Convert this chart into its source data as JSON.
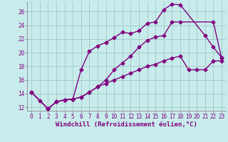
{
  "xlabel": "Windchill (Refroidissement éolien,°C)",
  "background_color": "#c8ecec",
  "line_color": "#800080",
  "grid_color": "#a0c8c8",
  "axis_color": "#800080",
  "xlim": [
    -0.5,
    23.5
  ],
  "ylim": [
    11.5,
    27.5
  ],
  "xticks": [
    0,
    1,
    2,
    3,
    4,
    5,
    6,
    7,
    8,
    9,
    10,
    11,
    12,
    13,
    14,
    15,
    16,
    17,
    18,
    19,
    20,
    21,
    22,
    23
  ],
  "yticks": [
    12,
    14,
    16,
    18,
    20,
    22,
    24,
    26
  ],
  "line1_x": [
    0,
    1,
    2,
    3,
    4,
    5,
    6,
    7,
    8,
    9,
    10,
    11,
    12,
    13,
    14,
    15,
    16,
    17,
    18,
    21,
    22,
    23
  ],
  "line1_y": [
    14.2,
    13.0,
    11.8,
    12.8,
    13.1,
    13.2,
    17.5,
    20.2,
    21.0,
    21.5,
    22.2,
    23.0,
    22.8,
    23.2,
    24.3,
    24.5,
    26.3,
    27.1,
    27.0,
    22.5,
    20.8,
    19.3
  ],
  "line2_x": [
    0,
    2,
    3,
    4,
    5,
    6,
    7,
    8,
    9,
    10,
    11,
    12,
    13,
    14,
    15,
    16,
    17,
    18,
    22,
    23
  ],
  "line2_y": [
    14.2,
    11.8,
    12.8,
    13.1,
    13.2,
    13.5,
    14.2,
    15.0,
    16.0,
    17.5,
    18.5,
    19.5,
    20.8,
    21.8,
    22.3,
    22.5,
    24.5,
    24.5,
    24.5,
    19.2
  ],
  "line3_x": [
    0,
    2,
    3,
    4,
    5,
    6,
    7,
    8,
    9,
    10,
    11,
    12,
    13,
    14,
    15,
    16,
    17,
    18,
    19,
    20,
    21,
    22,
    23
  ],
  "line3_y": [
    14.2,
    11.8,
    12.8,
    13.1,
    13.2,
    13.5,
    14.2,
    15.0,
    15.5,
    16.0,
    16.5,
    17.0,
    17.5,
    18.0,
    18.3,
    18.8,
    19.2,
    19.5,
    17.5,
    17.5,
    17.5,
    18.8,
    18.8
  ],
  "marker": "D",
  "marker_size": 2.5,
  "line_width": 1.0,
  "tick_fontsize": 5.5,
  "label_fontsize": 6.5
}
